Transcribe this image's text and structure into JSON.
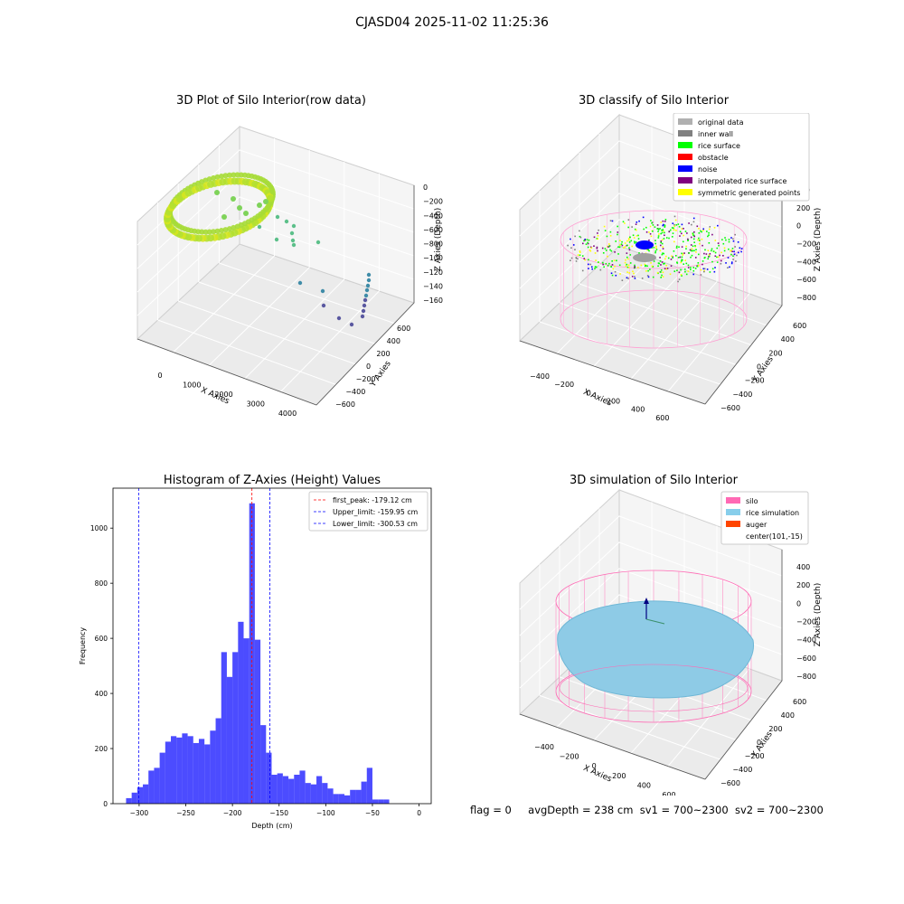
{
  "suptitle": "CJASD04 2025-11-02 11:25:36",
  "panels": {
    "raw": {
      "title": "3D Plot of Silo Interior(row data)",
      "xlabel": "X Axies",
      "ylabel": "Y Axies",
      "zlabel": "Z Axies (Depth)",
      "xticks": [
        "0",
        "1000",
        "2000",
        "3000",
        "4000"
      ],
      "yticks": [
        "600",
        "400",
        "200",
        "0",
        "−200",
        "−400",
        "−600"
      ],
      "zticks": [
        "0",
        "−200",
        "−400",
        "−600",
        "−800",
        "−1000",
        "−1200",
        "−1400",
        "−1600"
      ]
    },
    "classify": {
      "title": "3D classify of Silo Interior",
      "xlabel": "X Axies",
      "ylabel": "Y Axies",
      "zlabel": "Z Axies (Depth)",
      "xticks": [
        "−400",
        "−200",
        "0",
        "200",
        "400",
        "600",
        "800"
      ],
      "yticks": [
        "600",
        "400",
        "200",
        "0",
        "−200",
        "−400",
        "−600"
      ],
      "zticks": [
        "400",
        "200",
        "0",
        "−200",
        "−400",
        "−600",
        "−800"
      ],
      "legend": [
        {
          "label": "original data",
          "color": "#b0b0b0"
        },
        {
          "label": "inner wall",
          "color": "#808080"
        },
        {
          "label": "rice surface",
          "color": "#00ff00"
        },
        {
          "label": "obstacle",
          "color": "#ff0000"
        },
        {
          "label": "noise",
          "color": "#0000ff"
        },
        {
          "label": "interpolated rice surface",
          "color": "#800080"
        },
        {
          "label": "symmetric generated points",
          "color": "#ffff00"
        }
      ]
    },
    "simulation": {
      "title": "3D simulation of Silo Interior",
      "xlabel": "X Axies",
      "ylabel": "Y Axies",
      "zlabel": "Z Axies (Depth)",
      "xticks": [
        "−400",
        "−200",
        "0",
        "200",
        "400",
        "600"
      ],
      "yticks": [
        "600",
        "400",
        "200",
        "0",
        "−200",
        "−400",
        "−600"
      ],
      "zticks": [
        "400",
        "200",
        "0",
        "−200",
        "−400",
        "−600",
        "−800"
      ],
      "legend": [
        {
          "label": "silo",
          "color": "#ff69b4"
        },
        {
          "label": "rice simulation",
          "color": "#87ceeb"
        },
        {
          "label": "auger",
          "color": "#ff4500"
        },
        {
          "label": "center(101,-15)",
          "color": ""
        }
      ]
    }
  },
  "footer": {
    "flag": "flag = 0",
    "avg_depth": "avgDepth = 238 cm",
    "sv1": "sv1 = 700~2300",
    "sv2": "sv2 = 700~2300"
  },
  "chart_data": {
    "type": "bar",
    "title": "Histogram of Z-Axies (Height) Values",
    "xlabel": "Depth (cm)",
    "ylabel": "Frequency",
    "xlim": [
      -328,
      13
    ],
    "ylim": [
      0,
      1145
    ],
    "xticks": [
      -300,
      -250,
      -200,
      -150,
      -100,
      -50,
      0
    ],
    "yticks": [
      0,
      200,
      400,
      600,
      800,
      1000
    ],
    "bin_width": 6,
    "bin_start": -314,
    "values": [
      20,
      40,
      60,
      70,
      120,
      130,
      185,
      225,
      245,
      240,
      255,
      245,
      220,
      235,
      215,
      265,
      310,
      550,
      460,
      550,
      660,
      600,
      1090,
      595,
      285,
      185,
      105,
      110,
      100,
      90,
      105,
      120,
      75,
      70,
      100,
      75,
      55,
      35,
      35,
      30,
      50,
      50,
      80,
      130,
      15,
      15,
      15
    ],
    "bar_color": "#0000ff",
    "vlines": [
      {
        "label": "first_peak: -179.12 cm",
        "x": -179.12,
        "color": "#ff0000"
      },
      {
        "label": "Upper_limit: -159.95 cm",
        "x": -159.95,
        "color": "#0000ff"
      },
      {
        "label": "Lower_limit: -300.53 cm",
        "x": -300.53,
        "color": "#0000ff"
      }
    ],
    "legend_position": "upper right",
    "grid": false
  }
}
